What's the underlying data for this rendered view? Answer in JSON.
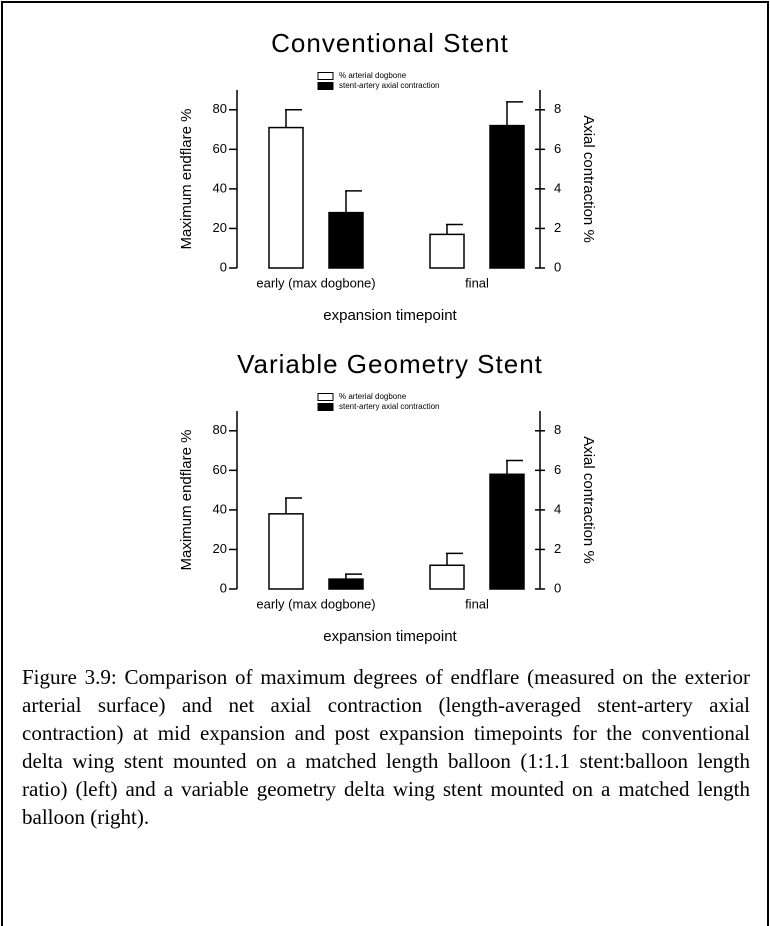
{
  "chart_data": [
    {
      "type": "bar",
      "title": "Conventional Stent",
      "categories": [
        "early (max dogbone)",
        "final"
      ],
      "xlabel": "expansion timepoint",
      "ylabel": "Maximum endflare %",
      "y2label": "Axial contraction %",
      "ylim": [
        0,
        90
      ],
      "yticks": [
        0,
        20,
        40,
        60,
        80
      ],
      "y2lim": [
        0,
        9
      ],
      "y2ticks": [
        0,
        2,
        4,
        6,
        8
      ],
      "series": [
        {
          "name": "% arterial dogbone",
          "color": "#ffffff",
          "values": [
            71,
            17
          ],
          "errors": [
            9,
            5
          ]
        },
        {
          "name": "stent-artery axial contraction",
          "color": "#000000",
          "axis": "y2",
          "values": [
            2.8,
            7.2
          ],
          "errors": [
            1.1,
            1.2
          ]
        }
      ]
    },
    {
      "type": "bar",
      "title": "Variable Geometry Stent",
      "categories": [
        "early (max dogbone)",
        "final"
      ],
      "xlabel": "expansion timepoint",
      "ylabel": "Maximum endflare %",
      "y2label": "Axial contraction %",
      "ylim": [
        0,
        90
      ],
      "yticks": [
        0,
        20,
        40,
        60,
        80
      ],
      "y2lim": [
        0,
        9
      ],
      "y2ticks": [
        0,
        2,
        4,
        6,
        8
      ],
      "series": [
        {
          "name": "% arterial dogbone",
          "color": "#ffffff",
          "values": [
            38,
            12
          ],
          "errors": [
            8,
            6
          ]
        },
        {
          "name": "stent-artery axial contraction",
          "color": "#000000",
          "axis": "y2",
          "values": [
            0.5,
            5.8
          ],
          "errors": [
            0.25,
            0.7
          ]
        }
      ]
    }
  ],
  "caption": "Figure 3.9: Comparison of maximum degrees of endflare (measured on the exterior arterial surface) and net axial contraction (length-averaged stent-artery axial contraction) at mid expansion and post expansion timepoints for the conventional delta wing stent mounted on a matched length balloon (1:1.1 stent:balloon length ratio)  (left) and a variable geometry delta wing stent mounted on a matched length balloon (right)."
}
